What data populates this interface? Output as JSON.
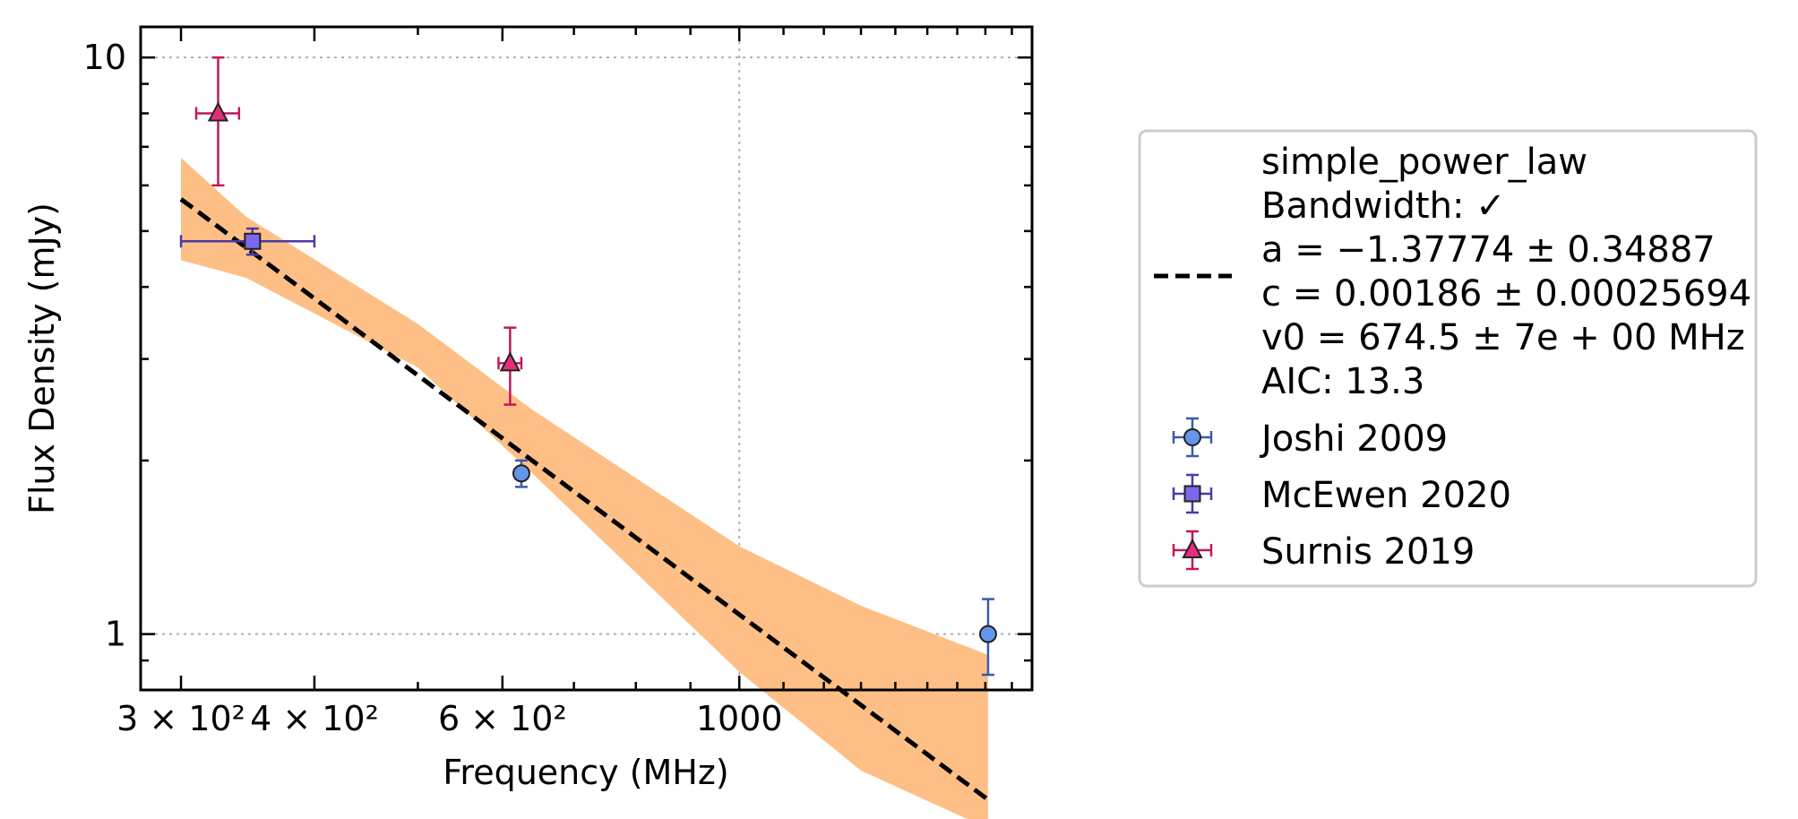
{
  "chart_data": {
    "type": "scatter",
    "xlabel": "Frequency (MHz)",
    "ylabel": "Flux Density (mJy)",
    "xscale": "log",
    "yscale": "log",
    "xlim": [
      275,
      1880
    ],
    "ylim": [
      0.8,
      11.3
    ],
    "grid": true,
    "legend_placement": "right, outside",
    "x_ticks": [
      {
        "value": 300,
        "label": "3 × 10²"
      },
      {
        "value": 400,
        "label": "4 × 10²"
      },
      {
        "value": 600,
        "label": "6 × 10²"
      },
      {
        "value": 1000,
        "label": "1000"
      }
    ],
    "y_ticks": [
      {
        "value": 1,
        "label": "1"
      },
      {
        "value": 10,
        "label": "10"
      }
    ],
    "fit": {
      "text_lines": [
        "simple_power_law",
        "Bandwidth: ✓",
        "a = −1.37774 ± 0.34887",
        "c = 0.00186 ± 0.00025694",
        "v0 = 674.5 ± 7e + 00 MHz",
        "AIC: 13.3"
      ],
      "a": -1.37774,
      "c": 0.00186,
      "v0": 674.5,
      "x_range": [
        300,
        1710
      ],
      "line_color": "#000000",
      "band_color": "#fdbf85",
      "band": [
        {
          "x": 300,
          "upper": 6.7,
          "lower": 4.45
        },
        {
          "x": 345,
          "upper": 5.3,
          "lower": 4.15
        },
        {
          "x": 500,
          "upper": 3.45,
          "lower": 2.9
        },
        {
          "x": 640,
          "upper": 2.45,
          "lower": 1.9
        },
        {
          "x": 1000,
          "upper": 1.42,
          "lower": 0.86
        },
        {
          "x": 1300,
          "upper": 1.12,
          "lower": 0.58
        },
        {
          "x": 1710,
          "upper": 0.92,
          "lower": 0.46
        }
      ]
    },
    "series": [
      {
        "name": "Joshi 2009",
        "marker": "circle",
        "color": "#6495ed",
        "edge_color": "#3a5ba8",
        "points": [
          {
            "x": 625,
            "y": 1.9,
            "xerr": [
              0,
              0
            ],
            "yerr": [
              0.1,
              0.1
            ]
          },
          {
            "x": 1710,
            "y": 1.0,
            "xerr": [
              0,
              0
            ],
            "yerr": [
              0.15,
              0.15
            ]
          }
        ]
      },
      {
        "name": "McEwen 2020",
        "marker": "square",
        "color": "#7b68ee",
        "edge_color": "#4b3aa8",
        "points": [
          {
            "x": 350,
            "y": 4.8,
            "xerr": [
              50,
              50
            ],
            "yerr": [
              0.25,
              0.25
            ]
          }
        ]
      },
      {
        "name": "Surnis 2019",
        "marker": "triangle",
        "color": "#e0307a",
        "edge_color": "#c2185b",
        "points": [
          {
            "x": 325,
            "y": 8.0,
            "xerr": [
              15,
              15
            ],
            "yerr": [
              2.0,
              2.0
            ]
          },
          {
            "x": 610,
            "y": 2.95,
            "xerr": [
              15,
              15
            ],
            "yerr": [
              0.45,
              0.45
            ]
          }
        ]
      }
    ]
  }
}
